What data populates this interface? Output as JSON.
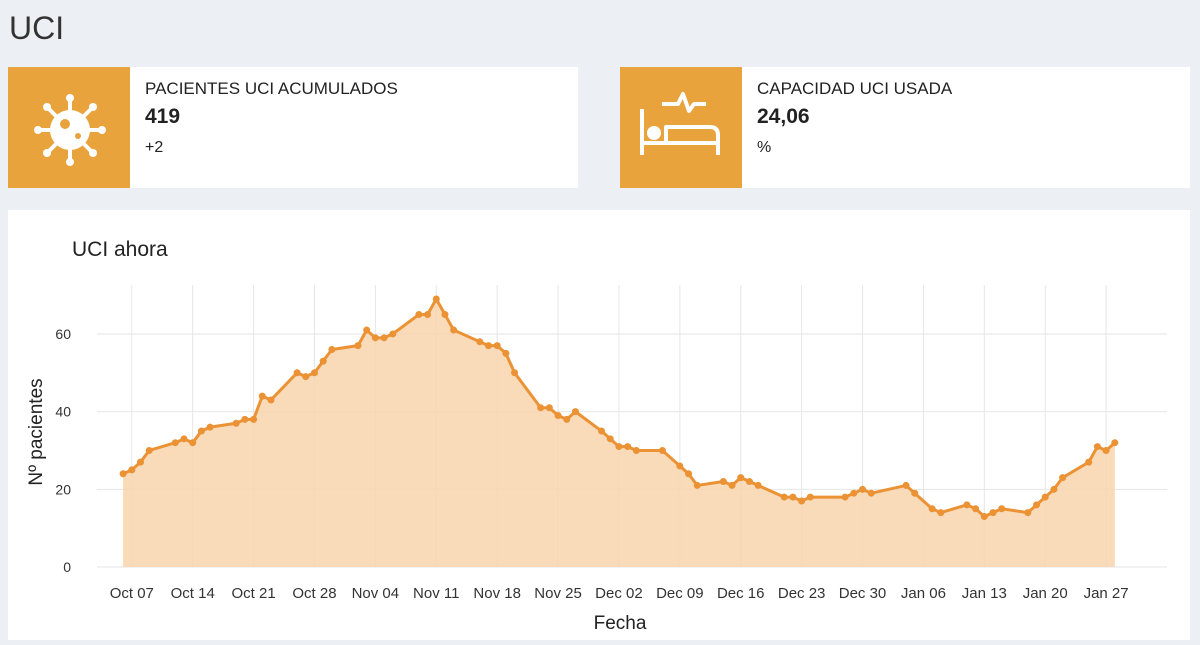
{
  "header": {
    "title": "UCI"
  },
  "cards": [
    {
      "label": "PACIENTES UCI ACUMULADOS",
      "value": "419",
      "note": "+2"
    },
    {
      "label": "CAPACIDAD UCI USADA",
      "value": "24,06",
      "note": "%"
    }
  ],
  "chart_data": {
    "type": "line",
    "title": "UCI ahora",
    "x_label": "Fecha",
    "y_label": "Nº pacientes",
    "color": "#eb9234",
    "fill": true,
    "fill_color": "#f8d3ad",
    "markers": true,
    "grid": true,
    "x": [
      "Oct 06",
      "Oct 07",
      "Oct 08",
      "Oct 09",
      "Oct 12",
      "Oct 13",
      "Oct 14",
      "Oct 15",
      "Oct 16",
      "Oct 19",
      "Oct 20",
      "Oct 21",
      "Oct 22",
      "Oct 23",
      "Oct 26",
      "Oct 27",
      "Oct 28",
      "Oct 29",
      "Oct 30",
      "Nov 02",
      "Nov 03",
      "Nov 04",
      "Nov 05",
      "Nov 06",
      "Nov 09",
      "Nov 10",
      "Nov 11",
      "Nov 12",
      "Nov 13",
      "Nov 16",
      "Nov 17",
      "Nov 18",
      "Nov 19",
      "Nov 20",
      "Nov 23",
      "Nov 24",
      "Nov 25",
      "Nov 26",
      "Nov 27",
      "Nov 30",
      "Dec 01",
      "Dec 02",
      "Dec 03",
      "Dec 04",
      "Dec 07",
      "Dec 09",
      "Dec 10",
      "Dec 11",
      "Dec 14",
      "Dec 15",
      "Dec 16",
      "Dec 17",
      "Dec 18",
      "Dec 21",
      "Dec 22",
      "Dec 23",
      "Dec 24",
      "Dec 28",
      "Dec 29",
      "Dec 30",
      "Dec 31",
      "Jan 04",
      "Jan 05",
      "Jan 07",
      "Jan 08",
      "Jan 11",
      "Jan 12",
      "Jan 13",
      "Jan 14",
      "Jan 15",
      "Jan 18",
      "Jan 19",
      "Jan 20",
      "Jan 21",
      "Jan 22",
      "Jan 25",
      "Jan 26",
      "Jan 27",
      "Jan 28"
    ],
    "values": [
      24,
      25,
      27,
      30,
      32,
      33,
      32,
      35,
      36,
      37,
      38,
      38,
      44,
      43,
      50,
      49,
      50,
      53,
      56,
      57,
      61,
      59,
      59,
      60,
      65,
      65,
      69,
      65,
      61,
      58,
      57,
      57,
      55,
      50,
      41,
      41,
      39,
      38,
      40,
      35,
      33,
      31,
      31,
      30,
      30,
      26,
      24,
      21,
      22,
      21,
      23,
      22,
      21,
      18,
      18,
      17,
      18,
      18,
      19,
      20,
      19,
      21,
      19,
      15,
      14,
      16,
      15,
      13,
      14,
      15,
      14,
      16,
      18,
      20,
      23,
      27,
      31,
      30,
      32
    ],
    "xlim": [
      "Oct 03",
      "Feb 03"
    ],
    "xticks": [
      "Oct 07",
      "Oct 14",
      "Oct 21",
      "Oct 28",
      "Nov 04",
      "Nov 11",
      "Nov 18",
      "Nov 25",
      "Dec 02",
      "Dec 09",
      "Dec 16",
      "Dec 23",
      "Dec 30",
      "Jan 06",
      "Jan 13",
      "Jan 20",
      "Jan 27"
    ],
    "ylim": [
      0,
      72.6
    ],
    "yticks": [
      0,
      20,
      40,
      60
    ]
  }
}
